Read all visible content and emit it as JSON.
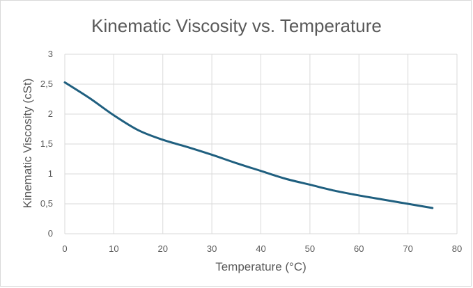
{
  "chart_data": {
    "type": "line",
    "title": "Kinematic Viscosity vs. Temperature",
    "xlabel": "Temperature (°C)",
    "ylabel": "Kinematic Viscosity (cSt)",
    "xlim": [
      0,
      80
    ],
    "ylim": [
      0,
      3
    ],
    "xticks": [
      0,
      10,
      20,
      30,
      40,
      50,
      60,
      70,
      80
    ],
    "xtick_labels": [
      "0",
      "10",
      "20",
      "30",
      "40",
      "50",
      "60",
      "70",
      "80"
    ],
    "yticks": [
      0,
      0.5,
      1,
      1.5,
      2,
      2.5,
      3
    ],
    "ytick_labels": [
      "0",
      "0,5",
      "1",
      "1,5",
      "2",
      "2,5",
      "3"
    ],
    "grid": true,
    "series": [
      {
        "color": "#1f5f7f",
        "x": [
          0,
          5,
          10,
          15,
          20,
          25,
          30,
          35,
          40,
          45,
          50,
          55,
          60,
          65,
          70,
          75
        ],
        "y": [
          2.53,
          2.27,
          1.98,
          1.73,
          1.57,
          1.45,
          1.32,
          1.18,
          1.05,
          0.92,
          0.82,
          0.72,
          0.64,
          0.57,
          0.5,
          0.43
        ]
      }
    ]
  }
}
